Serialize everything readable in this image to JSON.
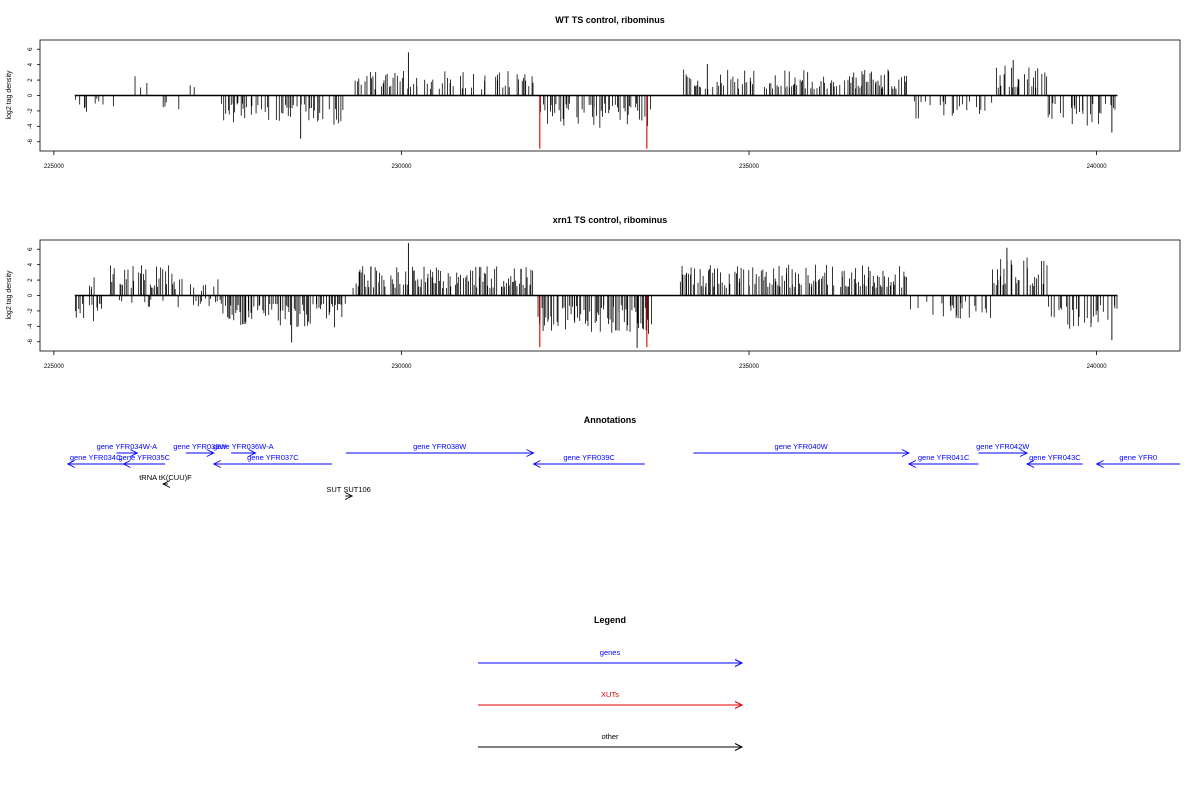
{
  "chart_data": [
    {
      "type": "bar",
      "title": "WT TS control, ribominus",
      "xlabel": "",
      "ylabel": "log2 tag density",
      "xlim": [
        224800,
        241200
      ],
      "ylim": [
        -7.2,
        7.2
      ],
      "x_ticks": [
        225000,
        230000,
        235000,
        240000
      ],
      "x_tick_labels": [
        "225000",
        "230000",
        "235000",
        "240000"
      ],
      "y_ticks": [
        -6,
        -4,
        -2,
        0,
        2,
        4,
        6
      ],
      "y_tick_labels": [
        "-6",
        "-4",
        "-2",
        "0",
        "2",
        "4",
        "6"
      ],
      "baseline_range": [
        225300,
        240300
      ],
      "highlight_color": "#e00000",
      "highlights": [
        {
          "x": 231990,
          "y": -6.9
        },
        {
          "x": 233530,
          "y": -6.9
        }
      ],
      "bin_width": 20,
      "segments": [
        {
          "range": [
            225300,
            225600
          ],
          "sign": -1,
          "amp": 2.2,
          "density": 0.4
        },
        {
          "range": [
            225600,
            226100
          ],
          "sign": -1,
          "amp": 1.5,
          "density": 0.2
        },
        {
          "range": [
            226100,
            226500
          ],
          "sign": 1,
          "amp": 3.6,
          "density": 0.35
        },
        {
          "range": [
            226500,
            226900
          ],
          "sign": -1,
          "amp": 2.4,
          "density": 0.15
        },
        {
          "range": [
            226900,
            227400
          ],
          "sign": 1,
          "amp": 2.0,
          "density": 0.15
        },
        {
          "range": [
            227400,
            229200
          ],
          "sign": -1,
          "amp": 3.8,
          "density": 0.55
        },
        {
          "range": [
            229300,
            231900
          ],
          "sign": 1,
          "amp": 3.2,
          "density": 0.55
        },
        {
          "range": [
            231950,
            233600
          ],
          "sign": -1,
          "amp": 4.2,
          "density": 0.65
        },
        {
          "range": [
            234000,
            237300
          ],
          "sign": 1,
          "amp": 3.4,
          "density": 0.6
        },
        {
          "range": [
            237300,
            238500
          ],
          "sign": -1,
          "amp": 3.0,
          "density": 0.4
        },
        {
          "range": [
            238500,
            239300
          ],
          "sign": 1,
          "amp": 4.0,
          "density": 0.5
        },
        {
          "range": [
            239300,
            240300
          ],
          "sign": -1,
          "amp": 4.0,
          "density": 0.55
        }
      ],
      "peaks": [
        {
          "x": 230100,
          "y": 5.6
        },
        {
          "x": 228550,
          "y": -5.6
        },
        {
          "x": 238800,
          "y": 4.6
        },
        {
          "x": 234400,
          "y": 4.1
        },
        {
          "x": 240220,
          "y": -4.8
        }
      ]
    },
    {
      "type": "bar",
      "title": "xrn1 TS control, ribominus",
      "xlabel": "",
      "ylabel": "log2 tag density",
      "xlim": [
        224800,
        241200
      ],
      "ylim": [
        -7.2,
        7.2
      ],
      "x_ticks": [
        225000,
        230000,
        235000,
        240000
      ],
      "x_tick_labels": [
        "225000",
        "230000",
        "235000",
        "240000"
      ],
      "y_ticks": [
        -6,
        -4,
        -2,
        0,
        2,
        4,
        6
      ],
      "y_tick_labels": [
        "-6",
        "-4",
        "-2",
        "0",
        "2",
        "4",
        "6"
      ],
      "baseline_range": [
        225300,
        240300
      ],
      "highlight_color": "#e00000",
      "highlights": [
        {
          "x": 231990,
          "y": -6.7
        },
        {
          "x": 233530,
          "y": -6.7
        }
      ],
      "bin_width": 20,
      "segments": [
        {
          "range": [
            225300,
            225800
          ],
          "sign": -1,
          "amp": 3.8,
          "density": 0.7
        },
        {
          "range": [
            225500,
            225600
          ],
          "sign": 1,
          "amp": 2.8,
          "density": 0.5
        },
        {
          "range": [
            225800,
            226700
          ],
          "sign": 1,
          "amp": 4.0,
          "density": 0.65
        },
        {
          "range": [
            225900,
            226600
          ],
          "sign": -1,
          "amp": 1.8,
          "density": 0.35
        },
        {
          "range": [
            226700,
            227400
          ],
          "sign": 1,
          "amp": 2.2,
          "density": 0.2
        },
        {
          "range": [
            226700,
            227400
          ],
          "sign": -1,
          "amp": 1.6,
          "density": 0.2
        },
        {
          "range": [
            227400,
            229200
          ],
          "sign": -1,
          "amp": 4.3,
          "density": 0.85
        },
        {
          "range": [
            229300,
            231900
          ],
          "sign": 1,
          "amp": 3.8,
          "density": 0.85
        },
        {
          "range": [
            231950,
            233600
          ],
          "sign": -1,
          "amp": 5.0,
          "density": 0.85
        },
        {
          "range": [
            234000,
            237300
          ],
          "sign": 1,
          "amp": 4.0,
          "density": 0.85
        },
        {
          "range": [
            237300,
            238500
          ],
          "sign": -1,
          "amp": 3.0,
          "density": 0.4
        },
        {
          "range": [
            238500,
            239300
          ],
          "sign": 1,
          "amp": 5.0,
          "density": 0.8
        },
        {
          "range": [
            239300,
            240300
          ],
          "sign": -1,
          "amp": 4.5,
          "density": 0.6
        }
      ],
      "peaks": [
        {
          "x": 230100,
          "y": 6.8
        },
        {
          "x": 233390,
          "y": -6.8
        },
        {
          "x": 238710,
          "y": 6.2
        },
        {
          "x": 228420,
          "y": -6.1
        },
        {
          "x": 240220,
          "y": -5.8
        }
      ]
    },
    {
      "type": "annotation-track",
      "title": "Annotations",
      "xlim": [
        224800,
        241200
      ],
      "features": [
        {
          "label": "gene YFR034W-A",
          "start": 225900,
          "end": 226200,
          "strand": "+",
          "row": 0,
          "category": "genes"
        },
        {
          "label": "gene YFR036W",
          "start": 226900,
          "end": 227300,
          "strand": "+",
          "row": 0,
          "category": "genes"
        },
        {
          "label": "gene YFR036W-A",
          "start": 227550,
          "end": 227900,
          "strand": "+",
          "row": 0,
          "category": "genes"
        },
        {
          "label": "gene YFR034C",
          "start": 225200,
          "end": 226000,
          "strand": "-",
          "row": 1,
          "category": "genes"
        },
        {
          "label": "gene YFR035C",
          "start": 226000,
          "end": 226600,
          "strand": "-",
          "row": 1,
          "category": "genes"
        },
        {
          "label": "gene YFR037C",
          "start": 227300,
          "end": 229000,
          "strand": "-",
          "row": 1,
          "category": "genes"
        },
        {
          "label": "gene YFR038W",
          "start": 229200,
          "end": 231900,
          "strand": "+",
          "row": 0,
          "category": "genes"
        },
        {
          "label": "gene YFR039C",
          "start": 231900,
          "end": 233500,
          "strand": "-",
          "row": 1,
          "category": "genes"
        },
        {
          "label": "gene YFR040W",
          "start": 234200,
          "end": 237300,
          "strand": "+",
          "row": 0,
          "category": "genes"
        },
        {
          "label": "gene YFR041C",
          "start": 237300,
          "end": 238300,
          "strand": "-",
          "row": 1,
          "category": "genes"
        },
        {
          "label": "gene YFR042W",
          "start": 238300,
          "end": 239000,
          "strand": "+",
          "row": 0,
          "category": "genes"
        },
        {
          "label": "gene YFR043C",
          "start": 239000,
          "end": 239800,
          "strand": "-",
          "row": 1,
          "category": "genes"
        },
        {
          "label": "gene YFR0",
          "start": 240000,
          "end": 241200,
          "strand": "-",
          "row": 1,
          "category": "genes"
        },
        {
          "label": "tRNA tK(CUU)F",
          "start": 226570,
          "end": 226640,
          "strand": "-",
          "row": 2,
          "category": "other"
        },
        {
          "label": "SUT SUT106",
          "start": 229190,
          "end": 229290,
          "strand": "+",
          "row": 3,
          "category": "other"
        }
      ]
    },
    {
      "type": "legend",
      "title": "Legend",
      "entries": [
        {
          "label": "genes",
          "color": "#0000ff"
        },
        {
          "label": "XUTs",
          "color": "#e00000"
        },
        {
          "label": "other",
          "color": "#000000"
        }
      ]
    }
  ]
}
